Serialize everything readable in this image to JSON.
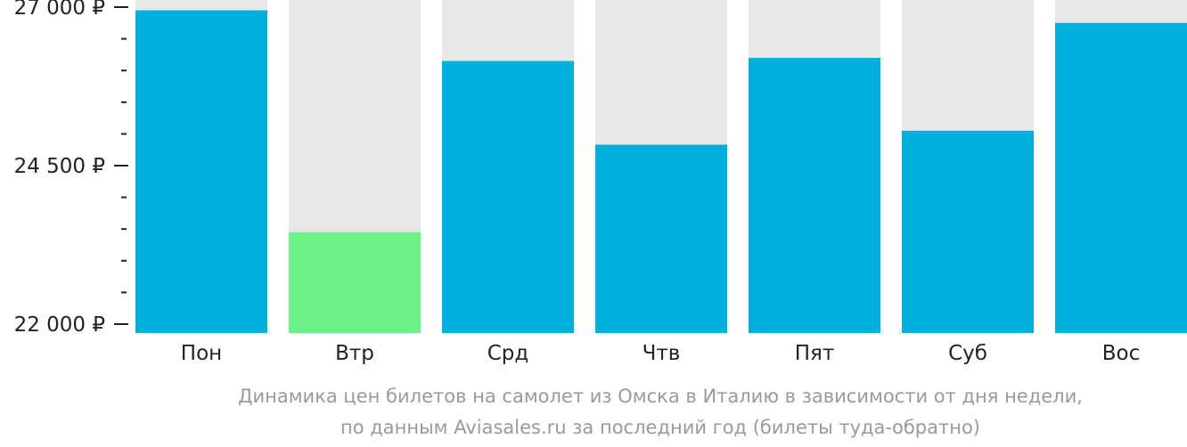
{
  "chart_data": {
    "type": "bar",
    "categories": [
      "Пон",
      "Втр",
      "Срд",
      "Чтв",
      "Пят",
      "Суб",
      "Вос"
    ],
    "values": [
      26950,
      23450,
      26150,
      24830,
      26200,
      25050,
      26750
    ],
    "ylim": [
      22000,
      27000
    ],
    "yticks": [
      22000,
      24500,
      27000
    ],
    "ytick_labels": [
      "22 000 ₽",
      "24 500 ₽",
      "27 000 ₽"
    ],
    "minor_ticks_between_labels": 4,
    "highlight_index": 1,
    "colors": {
      "bar": "#00b0dc",
      "highlight": "#6df288",
      "track": "#e8e8e8",
      "axis": "#222222"
    },
    "grid": false,
    "legend": "none"
  },
  "caption": {
    "line1": "Динамика цен билетов на самолет из Омска в Италию в зависимости от дня недели,",
    "line2": "по данным Aviasales.ru за последний год (билеты туда-обратно)"
  }
}
